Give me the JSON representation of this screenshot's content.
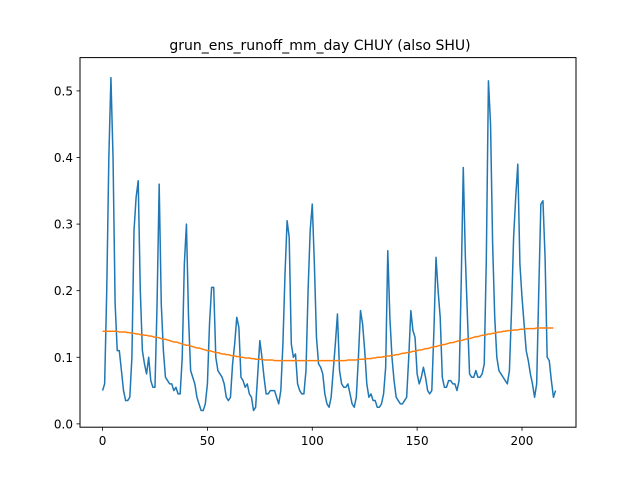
{
  "chart_data": {
    "type": "line",
    "title": "grun_ens_runoff_mm_day CHUY (also SHU)",
    "xlabel": "",
    "ylabel": "",
    "xlim": [
      -10.75,
      225.75
    ],
    "ylim": [
      -0.005,
      0.55
    ],
    "grid": false,
    "legend": "none",
    "xticks": [
      0,
      50,
      100,
      150,
      200
    ],
    "xtick_labels": [
      "0",
      "50",
      "100",
      "150",
      "200"
    ],
    "yticks": [
      0.0,
      0.1,
      0.2,
      0.3,
      0.4,
      0.5
    ],
    "ytick_labels": [
      "0.0",
      "0.1",
      "0.2",
      "0.3",
      "0.4",
      "0.5"
    ],
    "colors": {
      "series_0": "#1f77b4",
      "series_1": "#ff7f0e"
    },
    "series": [
      {
        "x_start": 0,
        "x_step": 1,
        "values": [
          0.05,
          0.06,
          0.2,
          0.4,
          0.52,
          0.4,
          0.18,
          0.11,
          0.11,
          0.08,
          0.05,
          0.035,
          0.035,
          0.04,
          0.1,
          0.29,
          0.34,
          0.365,
          0.2,
          0.11,
          0.09,
          0.075,
          0.1,
          0.065,
          0.055,
          0.055,
          0.18,
          0.36,
          0.18,
          0.11,
          0.07,
          0.065,
          0.06,
          0.06,
          0.05,
          0.055,
          0.045,
          0.045,
          0.1,
          0.24,
          0.3,
          0.16,
          0.08,
          0.07,
          0.06,
          0.04,
          0.03,
          0.02,
          0.02,
          0.03,
          0.06,
          0.15,
          0.205,
          0.205,
          0.1,
          0.08,
          0.075,
          0.07,
          0.06,
          0.04,
          0.035,
          0.04,
          0.09,
          0.12,
          0.16,
          0.145,
          0.07,
          0.065,
          0.055,
          0.06,
          0.045,
          0.04,
          0.02,
          0.025,
          0.075,
          0.125,
          0.1,
          0.07,
          0.045,
          0.045,
          0.05,
          0.05,
          0.05,
          0.04,
          0.03,
          0.05,
          0.12,
          0.225,
          0.305,
          0.28,
          0.12,
          0.1,
          0.105,
          0.06,
          0.05,
          0.045,
          0.045,
          0.08,
          0.2,
          0.29,
          0.33,
          0.24,
          0.13,
          0.09,
          0.085,
          0.075,
          0.045,
          0.03,
          0.025,
          0.04,
          0.08,
          0.12,
          0.165,
          0.08,
          0.06,
          0.055,
          0.055,
          0.06,
          0.045,
          0.03,
          0.025,
          0.04,
          0.1,
          0.17,
          0.15,
          0.11,
          0.06,
          0.04,
          0.045,
          0.035,
          0.035,
          0.025,
          0.025,
          0.03,
          0.045,
          0.085,
          0.26,
          0.16,
          0.1,
          0.065,
          0.04,
          0.035,
          0.03,
          0.03,
          0.035,
          0.04,
          0.1,
          0.17,
          0.14,
          0.13,
          0.075,
          0.06,
          0.07,
          0.085,
          0.07,
          0.05,
          0.045,
          0.05,
          0.14,
          0.25,
          0.2,
          0.16,
          0.07,
          0.055,
          0.055,
          0.065,
          0.065,
          0.06,
          0.06,
          0.05,
          0.065,
          0.21,
          0.385,
          0.25,
          0.16,
          0.075,
          0.07,
          0.07,
          0.08,
          0.07,
          0.07,
          0.075,
          0.09,
          0.25,
          0.515,
          0.45,
          0.27,
          0.16,
          0.1,
          0.08,
          0.075,
          0.07,
          0.065,
          0.06,
          0.08,
          0.17,
          0.28,
          0.34,
          0.39,
          0.24,
          0.19,
          0.15,
          0.11,
          0.095,
          0.075,
          0.06,
          0.04,
          0.06,
          0.2,
          0.33,
          0.335,
          0.25,
          0.1,
          0.095,
          0.065,
          0.04,
          0.05
        ]
      },
      {
        "x_start": 0,
        "x_step": 1,
        "values": [
          0.139,
          0.139,
          0.139,
          0.139,
          0.139,
          0.139,
          0.139,
          0.139,
          0.138,
          0.138,
          0.138,
          0.138,
          0.137,
          0.137,
          0.136,
          0.136,
          0.135,
          0.135,
          0.134,
          0.134,
          0.133,
          0.133,
          0.132,
          0.132,
          0.131,
          0.13,
          0.13,
          0.129,
          0.128,
          0.127,
          0.127,
          0.126,
          0.125,
          0.124,
          0.123,
          0.123,
          0.122,
          0.121,
          0.12,
          0.119,
          0.118,
          0.118,
          0.117,
          0.116,
          0.115,
          0.114,
          0.114,
          0.113,
          0.112,
          0.111,
          0.11,
          0.11,
          0.109,
          0.108,
          0.107,
          0.107,
          0.106,
          0.105,
          0.105,
          0.104,
          0.104,
          0.103,
          0.102,
          0.102,
          0.101,
          0.101,
          0.1,
          0.1,
          0.099,
          0.099,
          0.099,
          0.098,
          0.098,
          0.097,
          0.097,
          0.097,
          0.097,
          0.096,
          0.096,
          0.096,
          0.096,
          0.096,
          0.095,
          0.095,
          0.095,
          0.095,
          0.095,
          0.095,
          0.095,
          0.095,
          0.095,
          0.095,
          0.095,
          0.095,
          0.095,
          0.095,
          0.095,
          0.095,
          0.095,
          0.095,
          0.095,
          0.095,
          0.095,
          0.095,
          0.095,
          0.095,
          0.095,
          0.095,
          0.095,
          0.095,
          0.095,
          0.095,
          0.095,
          0.095,
          0.095,
          0.095,
          0.095,
          0.096,
          0.096,
          0.096,
          0.096,
          0.096,
          0.097,
          0.097,
          0.097,
          0.097,
          0.098,
          0.098,
          0.098,
          0.099,
          0.099,
          0.1,
          0.1,
          0.1,
          0.101,
          0.101,
          0.102,
          0.102,
          0.103,
          0.103,
          0.104,
          0.104,
          0.105,
          0.106,
          0.106,
          0.107,
          0.107,
          0.108,
          0.109,
          0.109,
          0.11,
          0.111,
          0.111,
          0.112,
          0.113,
          0.113,
          0.114,
          0.115,
          0.116,
          0.116,
          0.117,
          0.118,
          0.119,
          0.119,
          0.12,
          0.121,
          0.122,
          0.122,
          0.123,
          0.124,
          0.125,
          0.125,
          0.126,
          0.127,
          0.128,
          0.128,
          0.129,
          0.13,
          0.131,
          0.131,
          0.132,
          0.133,
          0.133,
          0.134,
          0.135,
          0.135,
          0.136,
          0.136,
          0.137,
          0.138,
          0.138,
          0.139,
          0.139,
          0.14,
          0.14,
          0.14,
          0.141,
          0.141,
          0.141,
          0.142,
          0.142,
          0.142,
          0.143,
          0.143,
          0.143,
          0.143,
          0.143,
          0.144,
          0.144,
          0.144,
          0.144,
          0.144,
          0.144,
          0.144,
          0.144,
          0.144
        ]
      }
    ]
  }
}
